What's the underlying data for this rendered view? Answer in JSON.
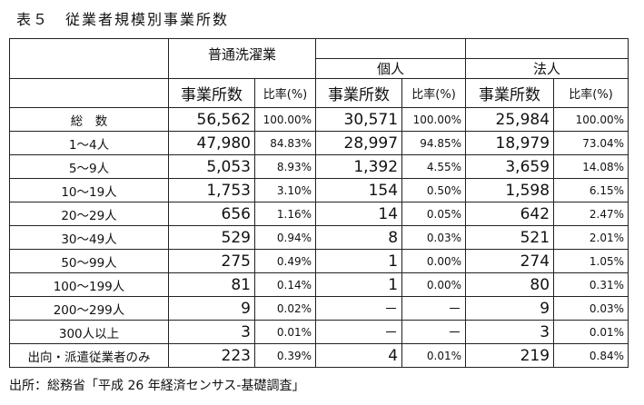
{
  "title": "表５　従業者規模別事業所数",
  "header": {
    "groups": [
      "普通洗濯業",
      "個人",
      "法人"
    ],
    "count_label": "事業所数",
    "ratio_label": "比率(%)"
  },
  "rows": [
    {
      "label": "総　数",
      "cells": [
        "56,562",
        "100.00%",
        "30,571",
        "100.00%",
        "25,984",
        "100.00%"
      ]
    },
    {
      "label": "1～4人",
      "cells": [
        "47,980",
        "84.83%",
        "28,997",
        "94.85%",
        "18,979",
        "73.04%"
      ]
    },
    {
      "label": "5～9人",
      "cells": [
        "5,053",
        "8.93%",
        "1,392",
        "4.55%",
        "3,659",
        "14.08%"
      ]
    },
    {
      "label": "10～19人",
      "cells": [
        "1,753",
        "3.10%",
        "154",
        "0.50%",
        "1,598",
        "6.15%"
      ]
    },
    {
      "label": "20～29人",
      "cells": [
        "656",
        "1.16%",
        "14",
        "0.05%",
        "642",
        "2.47%"
      ]
    },
    {
      "label": "30～49人",
      "cells": [
        "529",
        "0.94%",
        "8",
        "0.03%",
        "521",
        "2.01%"
      ]
    },
    {
      "label": "50～99人",
      "cells": [
        "275",
        "0.49%",
        "1",
        "0.00%",
        "274",
        "1.05%"
      ]
    },
    {
      "label": "100～199人",
      "cells": [
        "81",
        "0.14%",
        "1",
        "0.00%",
        "80",
        "0.31%"
      ]
    },
    {
      "label": "200～299人",
      "cells": [
        "9",
        "0.02%",
        "－",
        "－",
        "9",
        "0.03%"
      ]
    },
    {
      "label": "300人以上",
      "cells": [
        "3",
        "0.01%",
        "－",
        "－",
        "3",
        "0.01%"
      ]
    },
    {
      "label": "出向・派遣従業者のみ",
      "cells": [
        "223",
        "0.39%",
        "4",
        "0.01%",
        "219",
        "0.84%"
      ]
    }
  ],
  "source": "出所：総務省「平成 26 年経済センサス-基礎調査」"
}
